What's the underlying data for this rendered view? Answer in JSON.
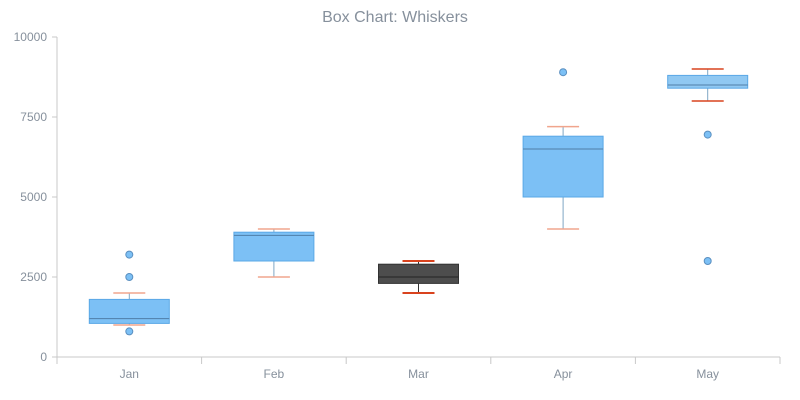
{
  "chart_data": {
    "type": "box",
    "title": "Box Chart: Whiskers",
    "xlabel": "",
    "ylabel": "",
    "ylim": [
      0,
      10000
    ],
    "yticks": [
      "0",
      "2500",
      "5000",
      "7500",
      "10000"
    ],
    "categories": [
      "Jan",
      "Feb",
      "Mar",
      "Apr",
      "May"
    ],
    "boxes": [
      {
        "category": "Jan",
        "min": 1000,
        "q1": 1050,
        "median": 1200,
        "q3": 1800,
        "max": 2000,
        "outliers": [
          800,
          2500,
          3200
        ],
        "color": "#7cc0f5",
        "whisker_color": "#f0a58d"
      },
      {
        "category": "Feb",
        "min": 2500,
        "q1": 3000,
        "median": 3800,
        "q3": 3900,
        "max": 4000,
        "outliers": [],
        "color": "#7cc0f5",
        "whisker_color": "#f0a58d"
      },
      {
        "category": "Mar",
        "min": 2000,
        "q1": 2300,
        "median": 2500,
        "q3": 2900,
        "max": 3000,
        "outliers": [],
        "color": "#4d4d4d",
        "whisker_color": "#d9431e"
      },
      {
        "category": "Apr",
        "min": 4000,
        "q1": 5000,
        "median": 6500,
        "q3": 6900,
        "max": 7200,
        "outliers": [
          8900
        ],
        "color": "#7cc0f5",
        "whisker_color": "#f0a58d"
      },
      {
        "category": "May",
        "min": 8000,
        "q1": 8400,
        "median": 8500,
        "q3": 8800,
        "max": 9000,
        "outliers": [
          6950,
          3000
        ],
        "color": "#90c8f2",
        "whisker_color": "#d9431e"
      }
    ],
    "grid": false,
    "legend": "none"
  }
}
